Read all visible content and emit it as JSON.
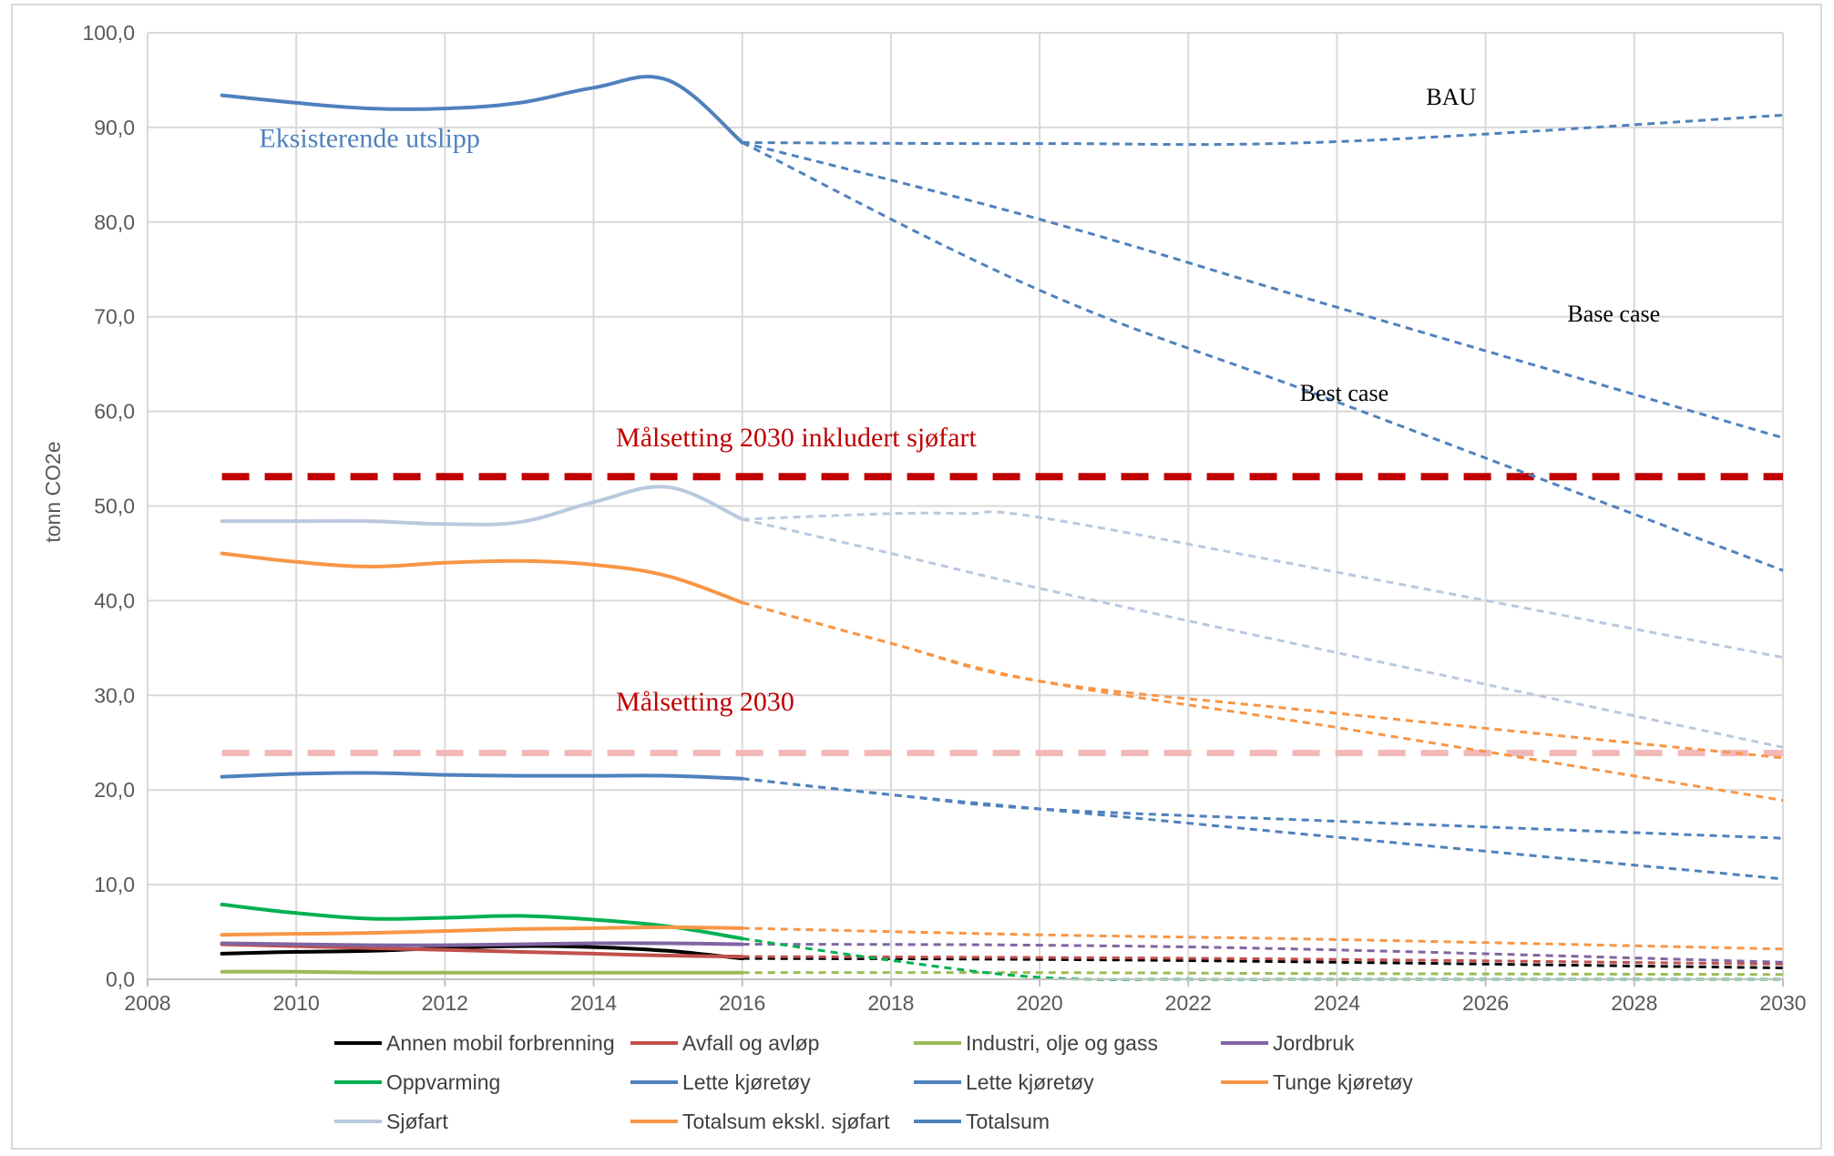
{
  "chart_data": {
    "type": "line",
    "ylabel": "tonn CO2e",
    "xlabel": "",
    "xlim": [
      2008,
      2030
    ],
    "ylim": [
      0,
      100
    ],
    "x_ticks": [
      "2008",
      "2010",
      "2012",
      "2014",
      "2016",
      "2018",
      "2020",
      "2022",
      "2024",
      "2026",
      "2028",
      "2030"
    ],
    "y_ticks": [
      "0,0",
      "10,0",
      "20,0",
      "30,0",
      "40,0",
      "50,0",
      "60,0",
      "70,0",
      "80,0",
      "90,0",
      "100,0"
    ],
    "grid": true,
    "legend_position": "bottom",
    "colors": {
      "annen": "#000000",
      "avfall": "#c0504d",
      "industri": "#9bbb59",
      "jordbruk": "#8064a2",
      "oppvarming": "#00b050",
      "lette": "#4f81bd",
      "tunge": "#f79646",
      "sjofart": "#b9c9de",
      "totalsum_eks": "#f79646",
      "totalsum": "#4f81bd",
      "target_sjofart": "#c00000",
      "target_2030": "#f2b8b8"
    },
    "historical_x": [
      2009,
      2010,
      2011,
      2012,
      2013,
      2014,
      2015,
      2016
    ],
    "series": [
      {
        "name": "Annen mobil forbrenning",
        "legend_color": "#000000",
        "color": "#000000",
        "historical": [
          2.7,
          2.9,
          3.0,
          3.3,
          3.5,
          3.4,
          3.0,
          2.2
        ],
        "projections": [
          {
            "x": [
              2016,
              2020,
              2024,
              2030
            ],
            "y": [
              2.2,
              2.1,
              1.8,
              1.2
            ]
          }
        ]
      },
      {
        "name": "Avfall og avløp",
        "legend_color": "#c0504d",
        "color": "#c0504d",
        "historical": [
          3.7,
          3.5,
          3.3,
          3.1,
          2.9,
          2.7,
          2.5,
          2.4
        ],
        "projections": [
          {
            "x": [
              2016,
              2020,
              2024,
              2030
            ],
            "y": [
              2.4,
              2.3,
              2.1,
              1.6
            ]
          }
        ]
      },
      {
        "name": "Industri, olje og gass",
        "legend_color": "#9bbb59",
        "color": "#9bbb59",
        "historical": [
          0.8,
          0.8,
          0.7,
          0.7,
          0.7,
          0.7,
          0.7,
          0.7
        ],
        "projections": [
          {
            "x": [
              2016,
              2020,
              2024,
              2030
            ],
            "y": [
              0.7,
              0.7,
              0.6,
              0.5
            ]
          }
        ]
      },
      {
        "name": "Jordbruk",
        "legend_color": "#8064a2",
        "color": "#8064a2",
        "historical": [
          3.8,
          3.7,
          3.6,
          3.6,
          3.7,
          3.8,
          3.8,
          3.7
        ],
        "projections": [
          {
            "x": [
              2016,
              2020,
              2024,
              2030
            ],
            "y": [
              3.7,
              3.6,
              3.1,
              1.8
            ]
          }
        ]
      },
      {
        "name": "Oppvarming",
        "legend_color": "#00b050",
        "color": "#00b050",
        "historical": [
          7.9,
          7.0,
          6.4,
          6.5,
          6.7,
          6.3,
          5.6,
          4.3
        ],
        "projections": [
          {
            "x": [
              2016,
              2018,
              2020,
              2022,
              2024,
              2030
            ],
            "y": [
              4.3,
              2.0,
              0.2,
              0.0,
              0.0,
              0.0
            ]
          }
        ]
      },
      {
        "name": "Lette kjøretøy",
        "legend_color": "#4f81bd",
        "color": "#4f81bd",
        "historical": [
          21.4,
          21.7,
          21.8,
          21.6,
          21.5,
          21.5,
          21.5,
          21.2
        ],
        "projections": [
          {
            "x": [
              2016,
              2018,
              2020,
              2024,
              2030
            ],
            "y": [
              21.2,
              19.5,
              18.0,
              16.7,
              14.9
            ]
          },
          {
            "x": [
              2016,
              2018,
              2020,
              2024,
              2030
            ],
            "y": [
              21.2,
              19.5,
              18.0,
              15.0,
              10.6
            ]
          }
        ]
      },
      {
        "name": "Lette kjøretøy",
        "legend_color": "#4f81bd",
        "color": "#4f81bd",
        "historical": null,
        "projections": []
      },
      {
        "name": "Tunge kjøretøy",
        "legend_color": "#f79646",
        "color": "#f79646",
        "historical": [
          4.7,
          4.8,
          4.9,
          5.1,
          5.3,
          5.4,
          5.5,
          5.4
        ],
        "projections": [
          {
            "x": [
              2016,
              2020,
              2024,
              2030
            ],
            "y": [
              5.4,
              4.7,
              4.2,
              3.2
            ]
          }
        ]
      },
      {
        "name": "Sjøfart",
        "legend_color": "#b9c9de",
        "color": "#b9c9de",
        "historical": [
          48.4,
          48.4,
          48.4,
          48.1,
          48.3,
          50.4,
          52.0,
          48.6
        ],
        "projections": [
          {
            "x": [
              2016,
              2018,
              2019,
              2020,
              2024,
              2030
            ],
            "y": [
              48.6,
              49.2,
              49.2,
              48.8,
              43.0,
              34.0
            ]
          },
          {
            "x": [
              2016,
              2018,
              2020,
              2024,
              2030
            ],
            "y": [
              48.6,
              45.0,
              41.3,
              34.5,
              24.5
            ]
          }
        ]
      },
      {
        "name": "Totalsum ekskl. sjøfart",
        "legend_color": "#f79646",
        "color": "#f79646",
        "historical": [
          45.0,
          44.1,
          43.6,
          44.0,
          44.2,
          43.8,
          42.6,
          39.8
        ],
        "projections": [
          {
            "x": [
              2016,
              2018,
              2020,
              2024,
              2030
            ],
            "y": [
              39.8,
              35.5,
              31.5,
              28.1,
              23.4
            ]
          },
          {
            "x": [
              2016,
              2018,
              2020,
              2024,
              2030
            ],
            "y": [
              39.8,
              35.5,
              31.5,
              26.6,
              18.9
            ]
          }
        ]
      },
      {
        "name": "Totalsum",
        "legend_color": "#4f81bd",
        "color": "#4f81bd",
        "historical": [
          93.4,
          92.6,
          92.0,
          92.0,
          92.6,
          94.2,
          95.0,
          88.4
        ],
        "projections": [
          {
            "x": [
              2016,
              2020,
              2024,
              2030
            ],
            "y": [
              88.4,
              88.3,
              88.5,
              91.3
            ]
          },
          {
            "x": [
              2016,
              2020,
              2024,
              2030
            ],
            "y": [
              88.4,
              80.3,
              71.0,
              57.2
            ]
          },
          {
            "x": [
              2016,
              2020,
              2024,
              2030
            ],
            "y": [
              88.4,
              72.8,
              61.0,
              43.2
            ]
          }
        ]
      }
    ],
    "target_lines": [
      {
        "label": "Målsetting 2030 inkludert sjøfart",
        "value": 53.1,
        "color": "#c00000"
      },
      {
        "label": "Målsetting 2030",
        "value": 23.9,
        "color": "#f2b8b8"
      }
    ],
    "annotations": [
      {
        "text": "Eksisterende utslipp",
        "at_x": 2009.5,
        "at_y": 87.9,
        "color": "#4f81bd",
        "size": 30
      },
      {
        "text": "BAU",
        "at_x": 2025.2,
        "at_y": 92.4,
        "color": "#000000",
        "size": 26
      },
      {
        "text": "Base case",
        "at_x": 2027.1,
        "at_y": 69.5,
        "color": "#000000",
        "size": 26
      },
      {
        "text": "Best case",
        "at_x": 2023.5,
        "at_y": 61.1,
        "color": "#000000",
        "size": 26
      },
      {
        "text": "Målsetting 2030 inkludert sjøfart",
        "at_x": 2014.3,
        "at_y": 56.3,
        "color": "#c00000",
        "size": 30
      },
      {
        "text": "Målsetting 2030",
        "at_x": 2014.3,
        "at_y": 28.4,
        "color": "#c00000",
        "size": 30
      }
    ]
  }
}
